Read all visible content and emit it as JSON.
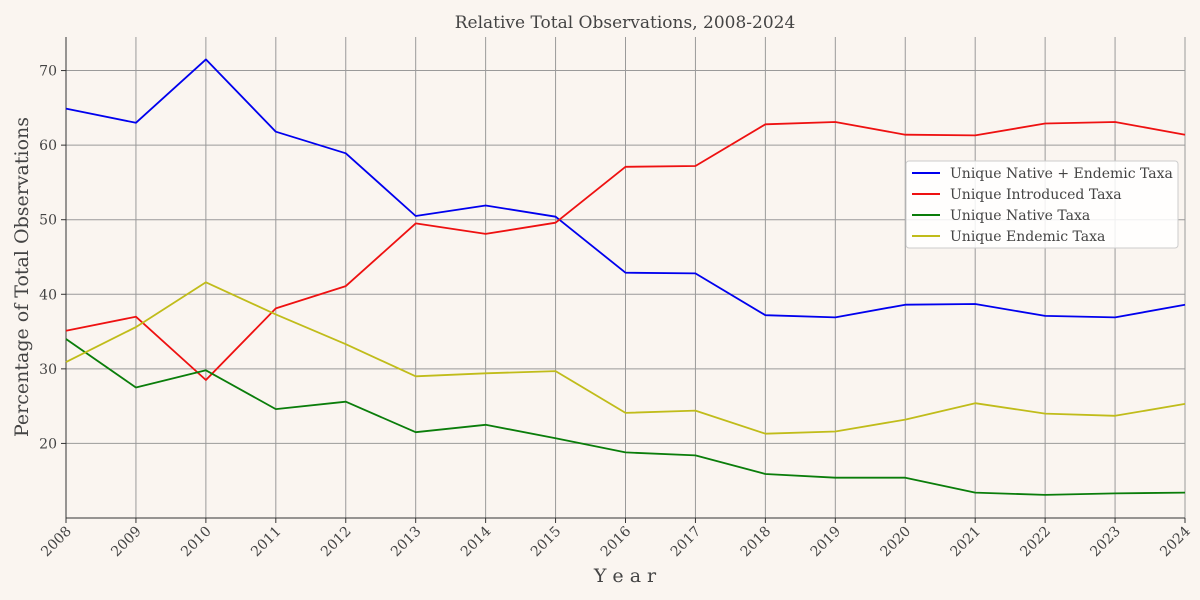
{
  "chart_data": {
    "type": "line",
    "title": "Relative Total Observations, 2008-2024",
    "xlabel": "Y e a r",
    "ylabel": "Percentage of Total Observations",
    "x": [
      "2008",
      "2009",
      "2010",
      "2011",
      "2012",
      "2013",
      "2014",
      "2015",
      "2016",
      "2017",
      "2018",
      "2019",
      "2020",
      "2021",
      "2022",
      "2023",
      "2024"
    ],
    "xlim": [
      2008,
      2024
    ],
    "ylim": [
      10.0,
      74.5
    ],
    "yticks": [
      20,
      30,
      40,
      50,
      60,
      70
    ],
    "grid": true,
    "legend_position": "center-right",
    "series": [
      {
        "name": "Unique Native + Endemic Taxa",
        "color": "#0000ee",
        "values": [
          64.9,
          63.0,
          71.5,
          61.8,
          58.9,
          50.5,
          51.9,
          50.4,
          42.9,
          42.8,
          37.2,
          36.9,
          38.6,
          38.7,
          37.1,
          36.9,
          38.6
        ]
      },
      {
        "name": "Unique Introduced Taxa",
        "color": "#ee1111",
        "values": [
          35.1,
          37.0,
          28.5,
          38.1,
          41.1,
          49.5,
          48.1,
          49.6,
          57.1,
          57.2,
          62.8,
          63.1,
          61.4,
          61.3,
          62.9,
          63.1,
          61.4
        ]
      },
      {
        "name": "Unique Native Taxa",
        "color": "#0a7d0a",
        "values": [
          34.0,
          27.5,
          29.8,
          24.6,
          25.6,
          21.5,
          22.5,
          20.7,
          18.8,
          18.4,
          15.9,
          15.4,
          15.4,
          13.4,
          13.1,
          13.3,
          13.4
        ]
      },
      {
        "name": "Unique Endemic Taxa",
        "color": "#c0bc1a",
        "values": [
          30.9,
          35.6,
          41.6,
          37.3,
          33.3,
          29.0,
          29.4,
          29.7,
          24.1,
          24.4,
          21.3,
          21.6,
          23.2,
          25.4,
          24.0,
          23.7,
          25.3
        ]
      }
    ]
  }
}
